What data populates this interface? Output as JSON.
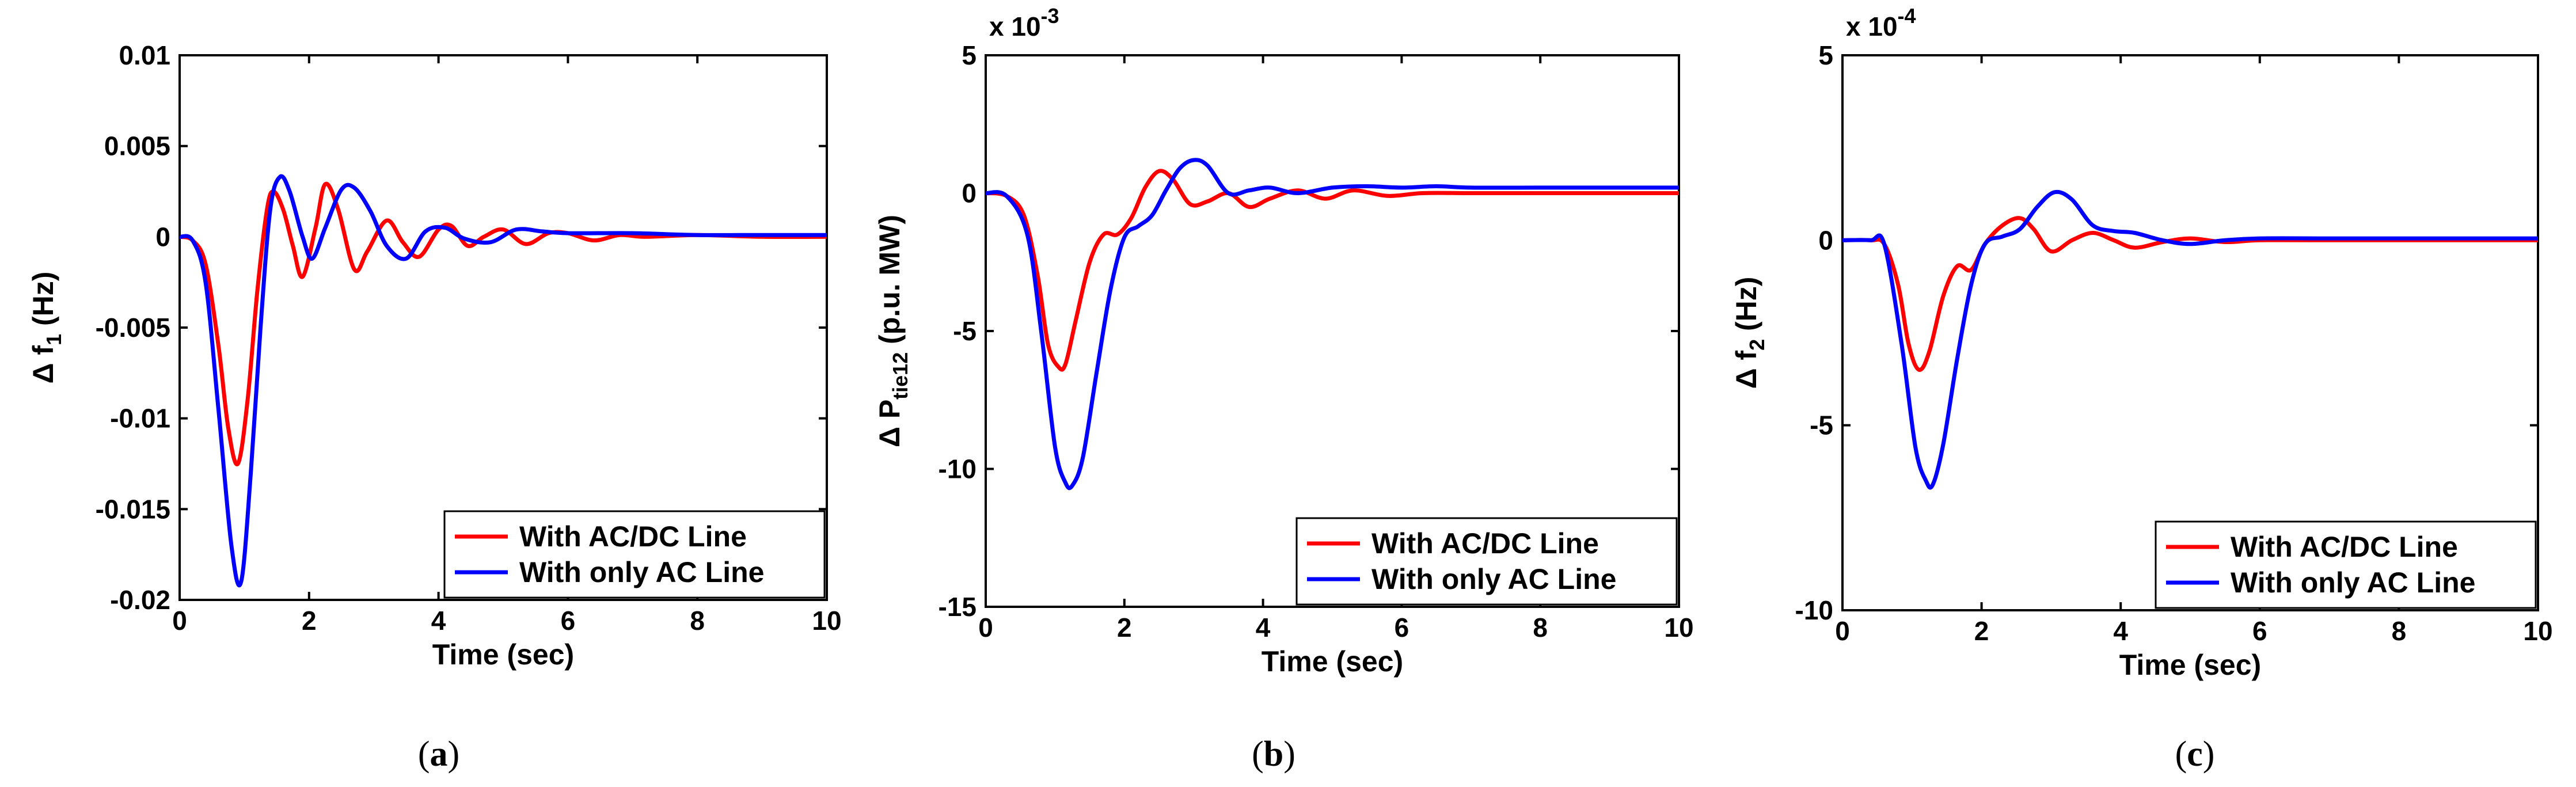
{
  "colors": {
    "series_ac_dc": "#ff0000",
    "series_ac_only": "#0000ff",
    "axis": "#000000"
  },
  "chart_data": [
    {
      "id": "a",
      "type": "line",
      "caption": {
        "open": "(",
        "letter": "a",
        "close": ")"
      },
      "xlabel": "Time (sec)",
      "ylabel": {
        "main": "Δ f",
        "sub": "1",
        "unit": " (Hz)"
      },
      "scale_note": null,
      "xlim": [
        0,
        10
      ],
      "ylim": [
        -0.02,
        0.01
      ],
      "xticks": [
        0,
        2,
        4,
        6,
        8,
        10
      ],
      "xtick_labels": [
        "0",
        "2",
        "4",
        "6",
        "8",
        "10"
      ],
      "yticks": [
        -0.02,
        -0.015,
        -0.01,
        -0.005,
        0,
        0.005,
        0.01
      ],
      "ytick_labels": [
        "-0.02",
        "-0.015",
        "-0.01",
        "-0.005",
        "0",
        "0.005",
        "0.01"
      ],
      "legend": {
        "position": "bottom-right",
        "entries": [
          "With AC/DC Line",
          "With only AC Line"
        ]
      },
      "series": [
        {
          "name": "With AC/DC Line",
          "color": "#ff0000",
          "x": [
            0,
            0.2,
            0.4,
            0.6,
            0.75,
            0.9,
            1.05,
            1.2,
            1.35,
            1.45,
            1.6,
            1.75,
            1.9,
            2.1,
            2.25,
            2.45,
            2.7,
            2.9,
            3.2,
            3.45,
            3.7,
            4.0,
            4.2,
            4.45,
            4.7,
            5.0,
            5.35,
            5.7,
            6.0,
            6.4,
            6.8,
            7.2,
            8.0,
            9.0,
            10.0
          ],
          "values": [
            0,
            -0.0002,
            -0.0015,
            -0.006,
            -0.0105,
            -0.0125,
            -0.009,
            -0.003,
            0.0015,
            0.0025,
            0.0015,
            -0.0005,
            -0.0022,
            0.0005,
            0.0029,
            0.0015,
            -0.0018,
            -0.0008,
            0.0009,
            -0.0003,
            -0.0011,
            0.0004,
            0.0006,
            -0.0005,
            0.0,
            0.0004,
            -0.0004,
            0.0002,
            0.0002,
            -0.0002,
            0.0001,
            0.0,
            0.0001,
            0.0,
            0.0
          ]
        },
        {
          "name": "With only AC Line",
          "color": "#0000ff",
          "x": [
            0,
            0.2,
            0.4,
            0.6,
            0.8,
            0.95,
            1.1,
            1.25,
            1.4,
            1.55,
            1.7,
            1.9,
            2.05,
            2.25,
            2.5,
            2.7,
            2.95,
            3.2,
            3.5,
            3.8,
            4.1,
            4.4,
            4.8,
            5.2,
            5.6,
            6.0,
            7.0,
            8.0,
            9.0,
            10.0
          ],
          "values": [
            0,
            -0.0002,
            -0.0025,
            -0.0095,
            -0.017,
            -0.019,
            -0.013,
            -0.005,
            0.0015,
            0.0033,
            0.0025,
            0.0,
            -0.0012,
            0.0005,
            0.0026,
            0.0027,
            0.0014,
            -0.0005,
            -0.0012,
            0.0003,
            0.0005,
            -0.0001,
            -0.0003,
            0.0004,
            0.0003,
            0.0002,
            0.0002,
            0.0001,
            0.0001,
            0.0001
          ]
        }
      ]
    },
    {
      "id": "b",
      "type": "line",
      "caption": {
        "open": "(",
        "letter": "b",
        "close": ")"
      },
      "xlabel": "Time (sec)",
      "ylabel": {
        "main": "Δ P",
        "sub": "tie12",
        "unit": " (p.u. MW)"
      },
      "scale_note": {
        "base": "x 10",
        "exp": "-3"
      },
      "xlim": [
        0,
        10
      ],
      "ylim": [
        -15,
        5
      ],
      "xticks": [
        0,
        2,
        4,
        6,
        8,
        10
      ],
      "xtick_labels": [
        "0",
        "2",
        "4",
        "6",
        "8",
        "10"
      ],
      "yticks": [
        -15,
        -10,
        -5,
        0,
        5
      ],
      "ytick_labels": [
        "-15",
        "-10",
        "-5",
        "0",
        "5"
      ],
      "legend": {
        "position": "bottom-right",
        "entries": [
          "With AC/DC Line",
          "With only AC Line"
        ]
      },
      "series": [
        {
          "name": "With AC/DC Line",
          "color": "#ff0000",
          "x": [
            0,
            0.3,
            0.55,
            0.75,
            0.9,
            1.05,
            1.15,
            1.3,
            1.5,
            1.7,
            1.9,
            2.1,
            2.3,
            2.5,
            2.7,
            2.95,
            3.2,
            3.5,
            3.8,
            4.1,
            4.5,
            4.9,
            5.3,
            5.8,
            6.3,
            7.0,
            8.0,
            9.0,
            10.0
          ],
          "values": [
            0,
            -0.1,
            -0.8,
            -3.0,
            -5.5,
            -6.3,
            -6.2,
            -4.6,
            -2.5,
            -1.5,
            -1.5,
            -0.9,
            0.2,
            0.8,
            0.5,
            -0.4,
            -0.3,
            0.0,
            -0.5,
            -0.2,
            0.1,
            -0.2,
            0.1,
            -0.1,
            0.0,
            0.0,
            0.0,
            0.0,
            0.0
          ]
        },
        {
          "name": "With only AC Line",
          "color": "#0000ff",
          "x": [
            0,
            0.3,
            0.6,
            0.8,
            1.0,
            1.15,
            1.25,
            1.4,
            1.6,
            1.8,
            2.0,
            2.2,
            2.4,
            2.6,
            2.8,
            3.0,
            3.2,
            3.5,
            3.8,
            4.1,
            4.5,
            5.0,
            5.5,
            6.0,
            6.5,
            7.0,
            8.0,
            9.0,
            10.0
          ],
          "values": [
            0,
            -0.1,
            -1.5,
            -5.0,
            -9.2,
            -10.5,
            -10.6,
            -9.6,
            -6.5,
            -3.5,
            -1.6,
            -1.2,
            -0.8,
            0.1,
            0.9,
            1.2,
            1.0,
            0.0,
            0.1,
            0.2,
            0.0,
            0.2,
            0.25,
            0.2,
            0.25,
            0.2,
            0.2,
            0.2,
            0.2
          ]
        }
      ]
    },
    {
      "id": "c",
      "type": "line",
      "caption": {
        "open": "(",
        "letter": "c",
        "close": ")"
      },
      "xlabel": "Time (sec)",
      "ylabel": {
        "main": "Δ f",
        "sub": "2",
        "unit": " (Hz)"
      },
      "scale_note": {
        "base": "x 10",
        "exp": "-4"
      },
      "xlim": [
        0,
        10
      ],
      "ylim": [
        -10,
        5
      ],
      "xticks": [
        0,
        2,
        4,
        6,
        8,
        10
      ],
      "xtick_labels": [
        "0",
        "2",
        "4",
        "6",
        "8",
        "10"
      ],
      "yticks": [
        -10,
        -5,
        0,
        5
      ],
      "ytick_labels": [
        "-10",
        "-5",
        "0",
        "5"
      ],
      "legend": {
        "position": "bottom-right",
        "entries": [
          "With AC/DC Line",
          "With only AC Line"
        ]
      },
      "series": [
        {
          "name": "With AC/DC Line",
          "color": "#ff0000",
          "x": [
            0,
            0.4,
            0.6,
            0.8,
            0.95,
            1.1,
            1.25,
            1.45,
            1.65,
            1.85,
            2.05,
            2.3,
            2.55,
            2.75,
            3.0,
            3.3,
            3.6,
            3.9,
            4.2,
            4.6,
            5.0,
            5.5,
            6.0,
            7.0,
            8.0,
            9.0,
            10.0
          ],
          "values": [
            0,
            0,
            -0.1,
            -1.2,
            -2.8,
            -3.5,
            -3.0,
            -1.5,
            -0.7,
            -0.8,
            -0.1,
            0.4,
            0.6,
            0.3,
            -0.3,
            0.0,
            0.2,
            0.0,
            -0.2,
            -0.05,
            0.05,
            -0.05,
            0.0,
            0.0,
            0.0,
            0.0,
            0.0
          ]
        },
        {
          "name": "With only AC Line",
          "color": "#0000ff",
          "x": [
            0,
            0.4,
            0.6,
            0.85,
            1.05,
            1.2,
            1.3,
            1.45,
            1.65,
            1.85,
            2.05,
            2.3,
            2.55,
            2.8,
            3.05,
            3.3,
            3.6,
            3.9,
            4.2,
            4.6,
            5.0,
            5.5,
            6.0,
            7.0,
            8.0,
            9.0,
            10.0
          ],
          "values": [
            0,
            0,
            -0.1,
            -2.8,
            -5.6,
            -6.5,
            -6.6,
            -5.5,
            -3.2,
            -1.2,
            -0.1,
            0.1,
            0.3,
            0.9,
            1.3,
            1.1,
            0.4,
            0.25,
            0.2,
            0.0,
            -0.1,
            0.0,
            0.05,
            0.05,
            0.05,
            0.05,
            0.05
          ]
        }
      ]
    }
  ]
}
